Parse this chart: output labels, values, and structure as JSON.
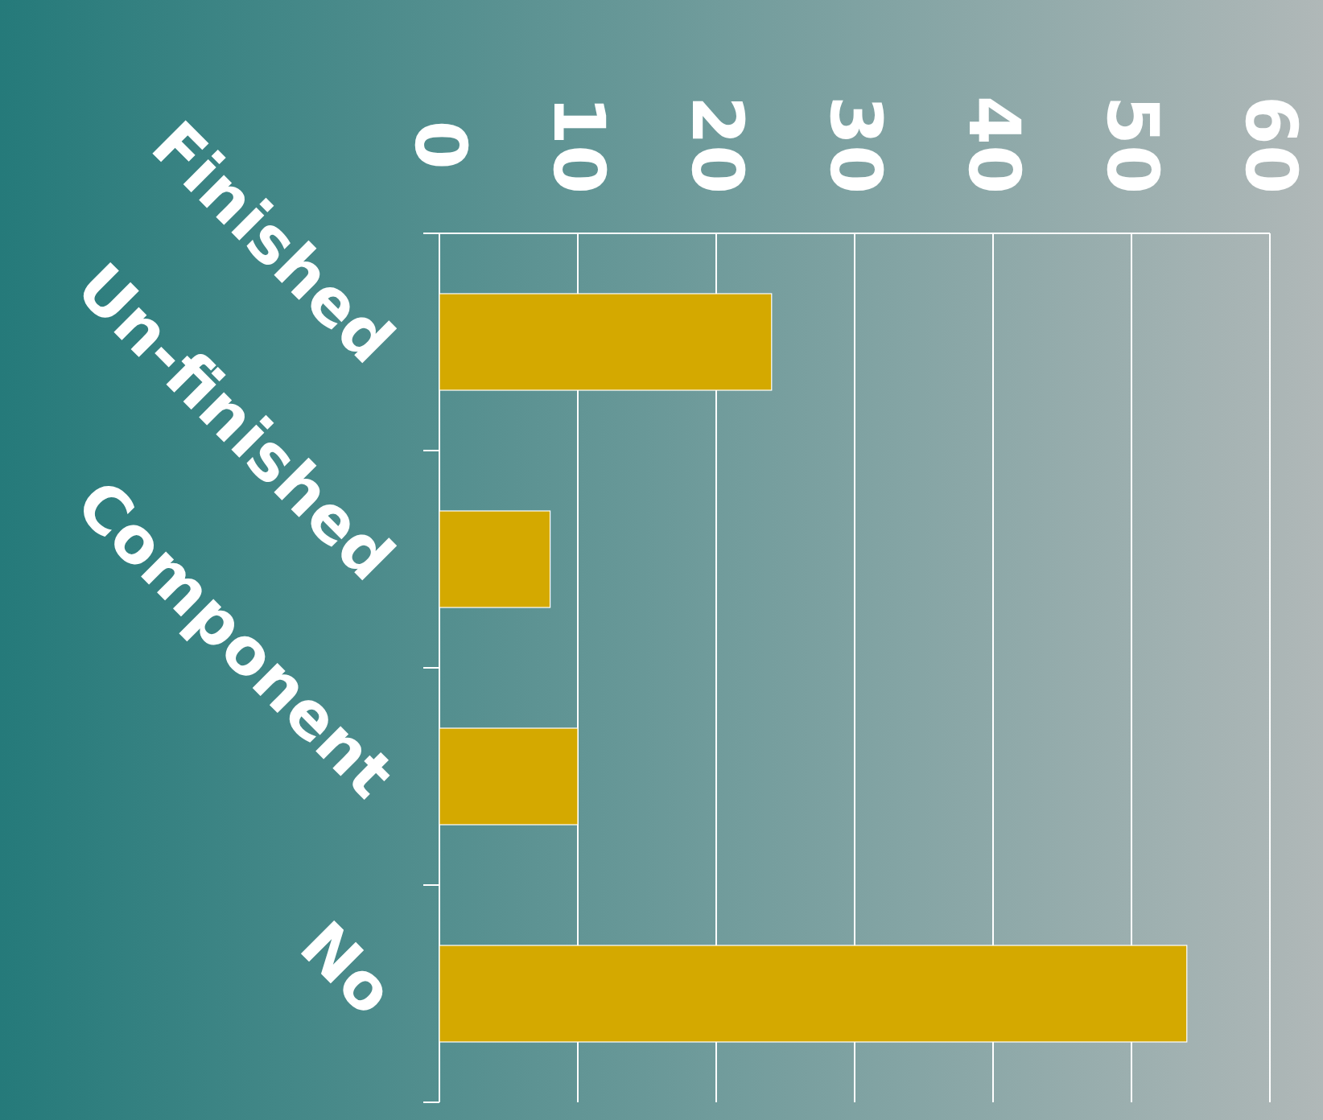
{
  "chart_data": {
    "type": "bar",
    "orientation": "horizontal",
    "categories": [
      "Finished",
      "Un-finished",
      "Component",
      "No"
    ],
    "values": [
      24,
      8,
      10,
      54
    ],
    "color": "#d4a900",
    "xlim": [
      0,
      60
    ],
    "xticks": [
      0,
      10,
      20,
      30,
      40,
      50,
      60
    ],
    "grid": "x"
  }
}
